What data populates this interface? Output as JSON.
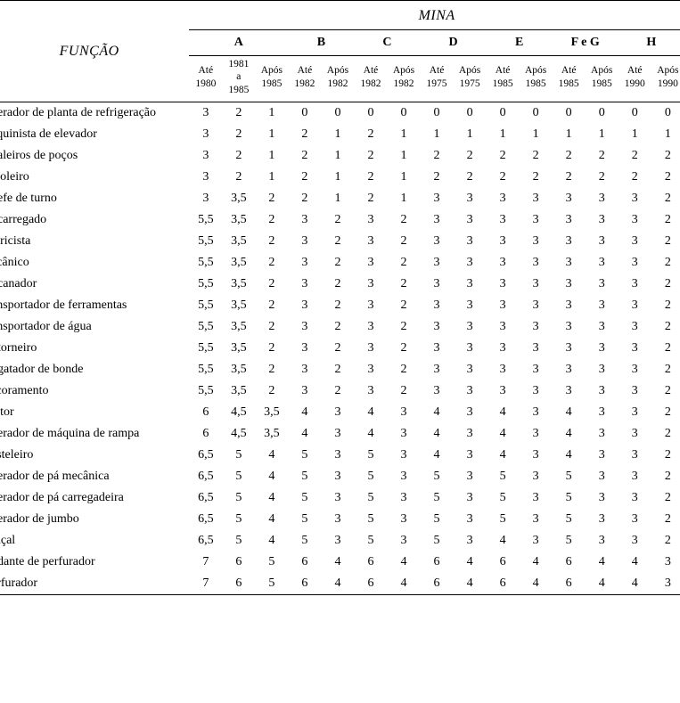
{
  "header": {
    "mina": "MINA",
    "funcao": "FUNÇÃO"
  },
  "mines": [
    {
      "label": "A",
      "periods": [
        {
          "line1": "Até",
          "line2": "1980"
        },
        {
          "line1": "1981",
          "line2": "a",
          "line3": "1985"
        },
        {
          "line1": "Após",
          "line2": "1985"
        }
      ]
    },
    {
      "label": "B",
      "periods": [
        {
          "line1": "Até",
          "line2": "1982"
        },
        {
          "line1": "Após",
          "line2": "1982"
        }
      ]
    },
    {
      "label": "C",
      "periods": [
        {
          "line1": "Até",
          "line2": "1982"
        },
        {
          "line1": "Após",
          "line2": "1982"
        }
      ]
    },
    {
      "label": "D",
      "periods": [
        {
          "line1": "Até",
          "line2": "1975"
        },
        {
          "line1": "Após",
          "line2": "1975"
        }
      ]
    },
    {
      "label": "E",
      "periods": [
        {
          "line1": "Até",
          "line2": "1985"
        },
        {
          "line1": "Após",
          "line2": "1985"
        }
      ]
    },
    {
      "label": "F e G",
      "periods": [
        {
          "line1": "Até",
          "line2": "1985"
        },
        {
          "line1": "Após",
          "line2": "1985"
        }
      ]
    },
    {
      "label": "H",
      "periods": [
        {
          "line1": "Até",
          "line2": "1990"
        },
        {
          "line1": "Após",
          "line2": "1990"
        }
      ]
    }
  ],
  "rows": [
    {
      "func": "perador de planta de refrigeração",
      "v": [
        "3",
        "2",
        "1",
        "0",
        "0",
        "0",
        "0",
        "0",
        "0",
        "0",
        "0",
        "0",
        "0",
        "0",
        "0"
      ]
    },
    {
      "func": "aquinista de elevador",
      "v": [
        "3",
        "2",
        "1",
        "2",
        "1",
        "2",
        "1",
        "1",
        "1",
        "1",
        "1",
        "1",
        "1",
        "1",
        "1"
      ]
    },
    {
      "func": "naleiros de poços",
      "v": [
        "3",
        "2",
        "1",
        "2",
        "1",
        "2",
        "1",
        "2",
        "2",
        "2",
        "2",
        "2",
        "2",
        "2",
        "2"
      ]
    },
    {
      "func": "aioleiro",
      "v": [
        "3",
        "2",
        "1",
        "2",
        "1",
        "2",
        "1",
        "2",
        "2",
        "2",
        "2",
        "2",
        "2",
        "2",
        "2"
      ]
    },
    {
      "func": "nefe de turno",
      "v": [
        "3",
        "3,5",
        "2",
        "2",
        "1",
        "2",
        "1",
        "3",
        "3",
        "3",
        "3",
        "3",
        "3",
        "3",
        "2"
      ]
    },
    {
      "func": "ncarregado",
      "v": [
        "5,5",
        "3,5",
        "2",
        "3",
        "2",
        "3",
        "2",
        "3",
        "3",
        "3",
        "3",
        "3",
        "3",
        "3",
        "2"
      ]
    },
    {
      "func": "etricista",
      "v": [
        "5,5",
        "3,5",
        "2",
        "3",
        "2",
        "3",
        "2",
        "3",
        "3",
        "3",
        "3",
        "3",
        "3",
        "3",
        "2"
      ]
    },
    {
      "func": "ecânico",
      "v": [
        "5,5",
        "3,5",
        "2",
        "3",
        "2",
        "3",
        "2",
        "3",
        "3",
        "3",
        "3",
        "3",
        "3",
        "3",
        "2"
      ]
    },
    {
      "func": "ncanador",
      "v": [
        "5,5",
        "3,5",
        "2",
        "3",
        "2",
        "3",
        "2",
        "3",
        "3",
        "3",
        "3",
        "3",
        "3",
        "3",
        "2"
      ]
    },
    {
      "func": "ansportador de ferramentas",
      "v": [
        "5,5",
        "3,5",
        "2",
        "3",
        "2",
        "3",
        "2",
        "3",
        "3",
        "3",
        "3",
        "3",
        "3",
        "3",
        "2"
      ]
    },
    {
      "func": "ansportador de água",
      "v": [
        "5,5",
        "3,5",
        "2",
        "3",
        "2",
        "3",
        "2",
        "3",
        "3",
        "3",
        "3",
        "3",
        "3",
        "3",
        "2"
      ]
    },
    {
      "func": "otorneiro",
      "v": [
        "5,5",
        "3,5",
        "2",
        "3",
        "2",
        "3",
        "2",
        "3",
        "3",
        "3",
        "3",
        "3",
        "3",
        "3",
        "2"
      ]
    },
    {
      "func": "ngatador de bonde",
      "v": [
        "5,5",
        "3,5",
        "2",
        "3",
        "2",
        "3",
        "2",
        "3",
        "3",
        "3",
        "3",
        "3",
        "3",
        "3",
        "2"
      ]
    },
    {
      "func": "scoramento",
      "v": [
        "5,5",
        "3,5",
        "2",
        "3",
        "2",
        "3",
        "2",
        "3",
        "3",
        "3",
        "3",
        "3",
        "3",
        "3",
        "2"
      ]
    },
    {
      "func": "eitor",
      "v": [
        "6",
        "4,5",
        "3,5",
        "4",
        "3",
        "4",
        "3",
        "4",
        "3",
        "4",
        "3",
        "4",
        "3",
        "3",
        "2"
      ]
    },
    {
      "func": "perador de máquina de rampa",
      "v": [
        "6",
        "4,5",
        "3,5",
        "4",
        "3",
        "4",
        "3",
        "4",
        "3",
        "4",
        "3",
        "4",
        "3",
        "3",
        "2"
      ]
    },
    {
      "func": "asteleiro",
      "v": [
        "6,5",
        "5",
        "4",
        "5",
        "3",
        "5",
        "3",
        "4",
        "3",
        "4",
        "3",
        "4",
        "3",
        "3",
        "2"
      ]
    },
    {
      "func": "perador de pá mecânica",
      "v": [
        "6,5",
        "5",
        "4",
        "5",
        "3",
        "5",
        "3",
        "5",
        "3",
        "5",
        "3",
        "5",
        "3",
        "3",
        "2"
      ]
    },
    {
      "func": "perador de pá carregadeira",
      "v": [
        "6,5",
        "5",
        "4",
        "5",
        "3",
        "5",
        "3",
        "5",
        "3",
        "5",
        "3",
        "5",
        "3",
        "3",
        "2"
      ]
    },
    {
      "func": "perador de jumbo",
      "v": [
        "6,5",
        "5",
        "4",
        "5",
        "3",
        "5",
        "3",
        "5",
        "3",
        "5",
        "3",
        "5",
        "3",
        "3",
        "2"
      ]
    },
    {
      "func": "raçal",
      "v": [
        "6,5",
        "5",
        "4",
        "5",
        "3",
        "5",
        "3",
        "5",
        "3",
        "4",
        "3",
        "5",
        "3",
        "3",
        "2"
      ]
    },
    {
      "func": "udante de perfurador",
      "v": [
        "7",
        "6",
        "5",
        "6",
        "4",
        "6",
        "4",
        "6",
        "4",
        "6",
        "4",
        "6",
        "4",
        "4",
        "3"
      ]
    },
    {
      "func": "erfurador",
      "v": [
        "7",
        "6",
        "5",
        "6",
        "4",
        "6",
        "4",
        "6",
        "4",
        "6",
        "4",
        "6",
        "4",
        "4",
        "3"
      ]
    }
  ]
}
